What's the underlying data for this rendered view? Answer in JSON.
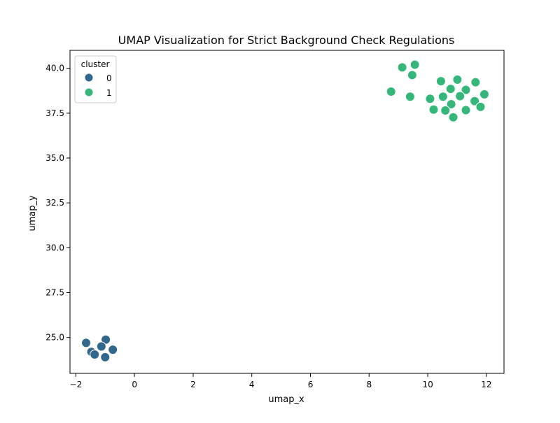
{
  "chart_data": {
    "type": "scatter",
    "title": "UMAP Visualization for Strict Background Check Regulations",
    "xlabel": "umap_x",
    "ylabel": "umap_y",
    "xlim": [
      -2.2,
      12.6
    ],
    "ylim": [
      23.0,
      41.0
    ],
    "xticks": [
      -2,
      0,
      2,
      4,
      6,
      8,
      10,
      12
    ],
    "xtick_labels": [
      "−2",
      "0",
      "2",
      "4",
      "6",
      "8",
      "10",
      "12"
    ],
    "yticks": [
      25.0,
      27.5,
      30.0,
      32.5,
      35.0,
      37.5,
      40.0
    ],
    "ytick_labels": [
      "25.0",
      "27.5",
      "30.0",
      "32.5",
      "35.0",
      "37.5",
      "40.0"
    ],
    "grid": false,
    "legend": {
      "title": "cluster",
      "placement": "top-left",
      "entries": [
        {
          "label": "0",
          "color": "#31688e"
        },
        {
          "label": "1",
          "color": "#35b779"
        }
      ]
    },
    "series": [
      {
        "name": "0",
        "color": "#31688e",
        "points": [
          [
            -1.65,
            24.7
          ],
          [
            -0.98,
            24.88
          ],
          [
            -1.13,
            24.5
          ],
          [
            -1.47,
            24.2
          ],
          [
            -1.36,
            24.05
          ],
          [
            -0.74,
            24.32
          ],
          [
            -1.0,
            23.9
          ]
        ]
      },
      {
        "name": "1",
        "color": "#35b779",
        "points": [
          [
            9.56,
            40.2
          ],
          [
            9.13,
            40.05
          ],
          [
            9.47,
            39.62
          ],
          [
            8.75,
            38.7
          ],
          [
            9.4,
            38.42
          ],
          [
            10.45,
            39.28
          ],
          [
            11.01,
            39.37
          ],
          [
            11.63,
            39.22
          ],
          [
            10.78,
            38.85
          ],
          [
            11.3,
            38.8
          ],
          [
            11.93,
            38.55
          ],
          [
            10.52,
            38.42
          ],
          [
            11.1,
            38.45
          ],
          [
            10.08,
            38.3
          ],
          [
            11.6,
            38.17
          ],
          [
            10.8,
            38.0
          ],
          [
            11.8,
            37.85
          ],
          [
            10.2,
            37.7
          ],
          [
            10.6,
            37.65
          ],
          [
            11.3,
            37.67
          ],
          [
            10.87,
            37.27
          ]
        ]
      }
    ]
  }
}
